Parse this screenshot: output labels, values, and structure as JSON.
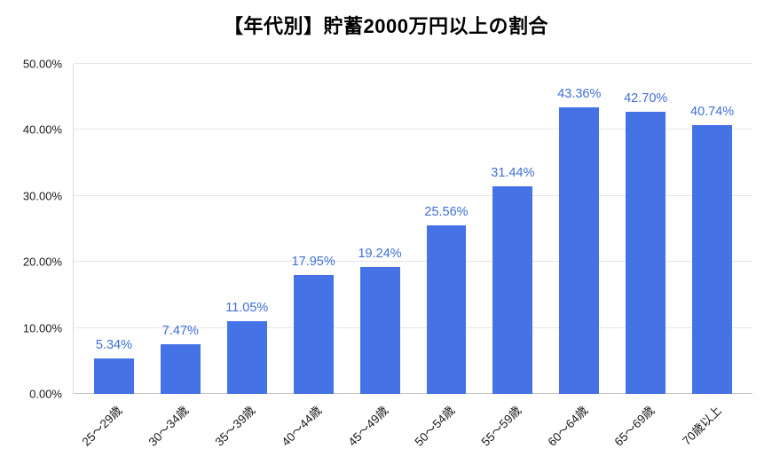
{
  "chart_data": {
    "type": "bar",
    "title": "【年代別】貯蓄2000万円以上の割合",
    "categories": [
      "25〜29歳",
      "30〜34歳",
      "35〜39歳",
      "40〜44歳",
      "45〜49歳",
      "50〜54歳",
      "55〜59歳",
      "60〜64歳",
      "65〜69歳",
      "70歳以上"
    ],
    "values": [
      5.34,
      7.47,
      11.05,
      17.95,
      19.24,
      25.56,
      31.44,
      43.36,
      42.7,
      40.74
    ],
    "value_labels": [
      "5.34%",
      "7.47%",
      "11.05%",
      "17.95%",
      "19.24%",
      "25.56%",
      "31.44%",
      "43.36%",
      "42.70%",
      "40.74%"
    ],
    "xlabel": "",
    "ylabel": "",
    "ylim": [
      0,
      50
    ],
    "ytick_step": 10,
    "ytick_labels": [
      "0.00%",
      "10.00%",
      "20.00%",
      "30.00%",
      "40.00%",
      "50.00%"
    ],
    "grid": true,
    "legend": "none",
    "bar_color": "#4573E6",
    "label_color": "#3E6FD8",
    "title_color": "#000000",
    "background": "#ffffff"
  }
}
